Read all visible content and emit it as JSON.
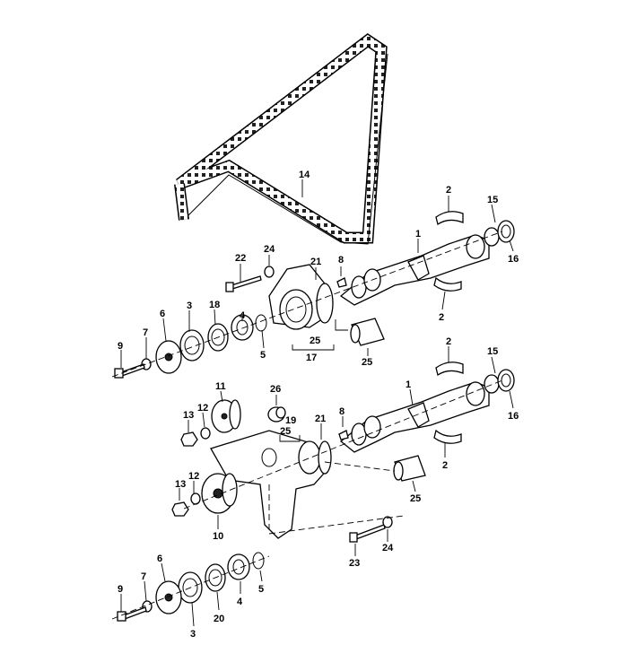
{
  "diagram": {
    "labels": {
      "l1a": "1",
      "l1b": "1",
      "l2a": "2",
      "l2b": "2",
      "l2c": "2",
      "l2d": "2",
      "l3a": "3",
      "l3b": "3",
      "l4a": "4",
      "l4b": "4",
      "l5a": "5",
      "l5b": "5",
      "l6a": "6",
      "l6b": "6",
      "l7a": "7",
      "l7b": "7",
      "l8a": "8",
      "l8b": "8",
      "l9a": "9",
      "l9b": "9",
      "l10": "10",
      "l11": "11",
      "l12a": "12",
      "l12b": "12",
      "l13a": "13",
      "l13b": "13",
      "l14": "14",
      "l15a": "15",
      "l15b": "15",
      "l16a": "16",
      "l16b": "16",
      "l17": "17",
      "l18": "18",
      "l19": "19",
      "l20": "20",
      "l21a": "21",
      "l21b": "21",
      "l22": "22",
      "l23": "23",
      "l24a": "24",
      "l24b": "24",
      "l25a": "25",
      "l25b": "25",
      "l25c": "25",
      "l25d": "25",
      "l26": "26"
    }
  }
}
